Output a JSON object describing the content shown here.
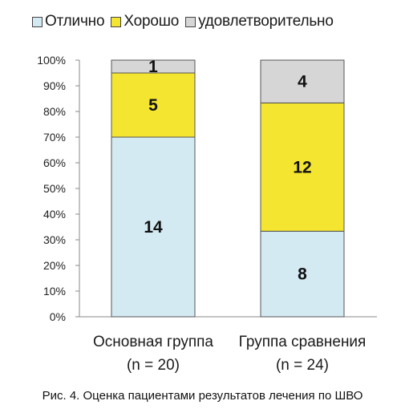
{
  "legend": [
    {
      "label": "Отлично",
      "color": "#d4eaf3"
    },
    {
      "label": "Хорошо",
      "color": "#f3e530"
    },
    {
      "label": "удовлетворительно",
      "color": "#d6d6d6"
    }
  ],
  "caption": "Рис. 4. Оценка пациентами результатов лечения по ШВО",
  "chart_data": {
    "type": "bar",
    "stacked": true,
    "percent": true,
    "categories": [
      [
        "Основная группа",
        "(n = 20)"
      ],
      [
        "Группа сравнения",
        "(n = 24)"
      ]
    ],
    "series": [
      {
        "name": "Отлично",
        "values": [
          14,
          8
        ],
        "color": "#d4eaf3"
      },
      {
        "name": "Хорошо",
        "values": [
          5,
          12
        ],
        "color": "#f3e530"
      },
      {
        "name": "удовлетворительно",
        "values": [
          1,
          4
        ],
        "color": "#d6d6d6"
      }
    ],
    "totals": [
      20,
      24
    ],
    "ylim": [
      0,
      100
    ],
    "yticks": [
      "0%",
      "10%",
      "20%",
      "30%",
      "40%",
      "50%",
      "60%",
      "70%",
      "80%",
      "90%",
      "100%"
    ],
    "grid": false,
    "legend_position": "top"
  }
}
